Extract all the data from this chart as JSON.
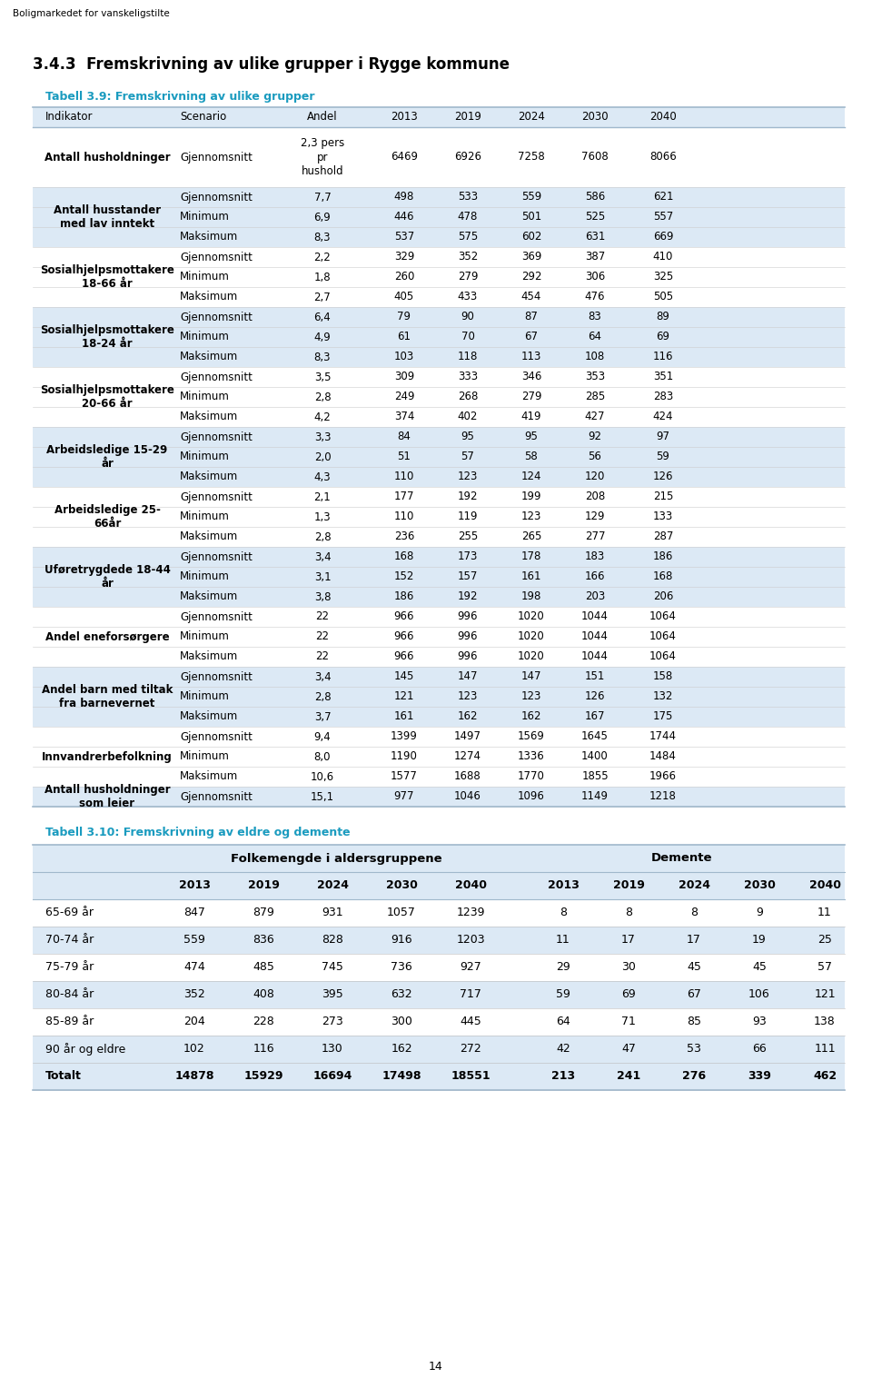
{
  "page_header": "Boligmarkedet for vanskeligstilte",
  "section_title": "3.4.3  Fremskrivning av ulike grupper i Rygge kommune",
  "table1_title": "Tabell 3.9: Fremskrivning av ulike grupper",
  "table1_headers": [
    "Indikator",
    "Scenario",
    "Andel",
    "2013",
    "2019",
    "2024",
    "2030",
    "2040"
  ],
  "table1_data": [
    [
      "Antall husholdninger",
      "Gjennomsnitt",
      "2,3 pers\npr\nhushold",
      "6469",
      "6926",
      "7258",
      "7608",
      "8066"
    ],
    [
      "Antall husstander\nmed lav inntekt",
      "Gjennomsnitt",
      "7,7",
      "498",
      "533",
      "559",
      "586",
      "621"
    ],
    [
      "",
      "Minimum",
      "6,9",
      "446",
      "478",
      "501",
      "525",
      "557"
    ],
    [
      "",
      "Maksimum",
      "8,3",
      "537",
      "575",
      "602",
      "631",
      "669"
    ],
    [
      "Sosialhjelpsmottakere\n18-66 år",
      "Gjennomsnitt",
      "2,2",
      "329",
      "352",
      "369",
      "387",
      "410"
    ],
    [
      "",
      "Minimum",
      "1,8",
      "260",
      "279",
      "292",
      "306",
      "325"
    ],
    [
      "",
      "Maksimum",
      "2,7",
      "405",
      "433",
      "454",
      "476",
      "505"
    ],
    [
      "Sosialhjelpsmottakere\n18-24 år",
      "Gjennomsnitt",
      "6,4",
      "79",
      "90",
      "87",
      "83",
      "89"
    ],
    [
      "",
      "Minimum",
      "4,9",
      "61",
      "70",
      "67",
      "64",
      "69"
    ],
    [
      "",
      "Maksimum",
      "8,3",
      "103",
      "118",
      "113",
      "108",
      "116"
    ],
    [
      "Sosialhjelpsmottakere\n20-66 år",
      "Gjennomsnitt",
      "3,5",
      "309",
      "333",
      "346",
      "353",
      "351"
    ],
    [
      "",
      "Minimum",
      "2,8",
      "249",
      "268",
      "279",
      "285",
      "283"
    ],
    [
      "",
      "Maksimum",
      "4,2",
      "374",
      "402",
      "419",
      "427",
      "424"
    ],
    [
      "Arbeidsledige 15-29\når",
      "Gjennomsnitt",
      "3,3",
      "84",
      "95",
      "95",
      "92",
      "97"
    ],
    [
      "",
      "Minimum",
      "2,0",
      "51",
      "57",
      "58",
      "56",
      "59"
    ],
    [
      "",
      "Maksimum",
      "4,3",
      "110",
      "123",
      "124",
      "120",
      "126"
    ],
    [
      "Arbeidsledige 25-\n66år",
      "Gjennomsnitt",
      "2,1",
      "177",
      "192",
      "199",
      "208",
      "215"
    ],
    [
      "",
      "Minimum",
      "1,3",
      "110",
      "119",
      "123",
      "129",
      "133"
    ],
    [
      "",
      "Maksimum",
      "2,8",
      "236",
      "255",
      "265",
      "277",
      "287"
    ],
    [
      "Uføretrygdede 18-44\når",
      "Gjennomsnitt",
      "3,4",
      "168",
      "173",
      "178",
      "183",
      "186"
    ],
    [
      "",
      "Minimum",
      "3,1",
      "152",
      "157",
      "161",
      "166",
      "168"
    ],
    [
      "",
      "Maksimum",
      "3,8",
      "186",
      "192",
      "198",
      "203",
      "206"
    ],
    [
      "Andel eneforsørgere",
      "Gjennomsnitt",
      "22",
      "966",
      "996",
      "1020",
      "1044",
      "1064"
    ],
    [
      "",
      "Minimum",
      "22",
      "966",
      "996",
      "1020",
      "1044",
      "1064"
    ],
    [
      "",
      "Maksimum",
      "22",
      "966",
      "996",
      "1020",
      "1044",
      "1064"
    ],
    [
      "Andel barn med tiltak\nfra barnevernet",
      "Gjennomsnitt",
      "3,4",
      "145",
      "147",
      "147",
      "151",
      "158"
    ],
    [
      "",
      "Minimum",
      "2,8",
      "121",
      "123",
      "123",
      "126",
      "132"
    ],
    [
      "",
      "Maksimum",
      "3,7",
      "161",
      "162",
      "162",
      "167",
      "175"
    ],
    [
      "Innvandrerbefolkning",
      "Gjennomsnitt",
      "9,4",
      "1399",
      "1497",
      "1569",
      "1645",
      "1744"
    ],
    [
      "",
      "Minimum",
      "8,0",
      "1190",
      "1274",
      "1336",
      "1400",
      "1484"
    ],
    [
      "",
      "Maksimum",
      "10,6",
      "1577",
      "1688",
      "1770",
      "1855",
      "1966"
    ],
    [
      "Antall husholdninger\nsom leier",
      "Gjennomsnitt",
      "15,1",
      "977",
      "1046",
      "1096",
      "1149",
      "1218"
    ]
  ],
  "table2_title": "Tabell 3.10: Fremskrivning av eldre og demente",
  "table2_data": [
    [
      "65-69 år",
      "847",
      "879",
      "931",
      "1057",
      "1239",
      "8",
      "8",
      "8",
      "9",
      "11"
    ],
    [
      "70-74 år",
      "559",
      "836",
      "828",
      "916",
      "1203",
      "11",
      "17",
      "17",
      "19",
      "25"
    ],
    [
      "75-79 år",
      "474",
      "485",
      "745",
      "736",
      "927",
      "29",
      "30",
      "45",
      "45",
      "57"
    ],
    [
      "80-84 år",
      "352",
      "408",
      "395",
      "632",
      "717",
      "59",
      "69",
      "67",
      "106",
      "121"
    ],
    [
      "85-89 år",
      "204",
      "228",
      "273",
      "300",
      "445",
      "64",
      "71",
      "85",
      "93",
      "138"
    ],
    [
      "90 år og eldre",
      "102",
      "116",
      "130",
      "162",
      "272",
      "42",
      "47",
      "53",
      "66",
      "111"
    ],
    [
      "Totalt",
      "14878",
      "15929",
      "16694",
      "17498",
      "18551",
      "213",
      "241",
      "276",
      "339",
      "462"
    ]
  ],
  "light_blue": "#dce9f5",
  "white": "#ffffff",
  "cyan_title": "#1a9bbf",
  "border_color": "#a0b8cc",
  "page_number": "14"
}
